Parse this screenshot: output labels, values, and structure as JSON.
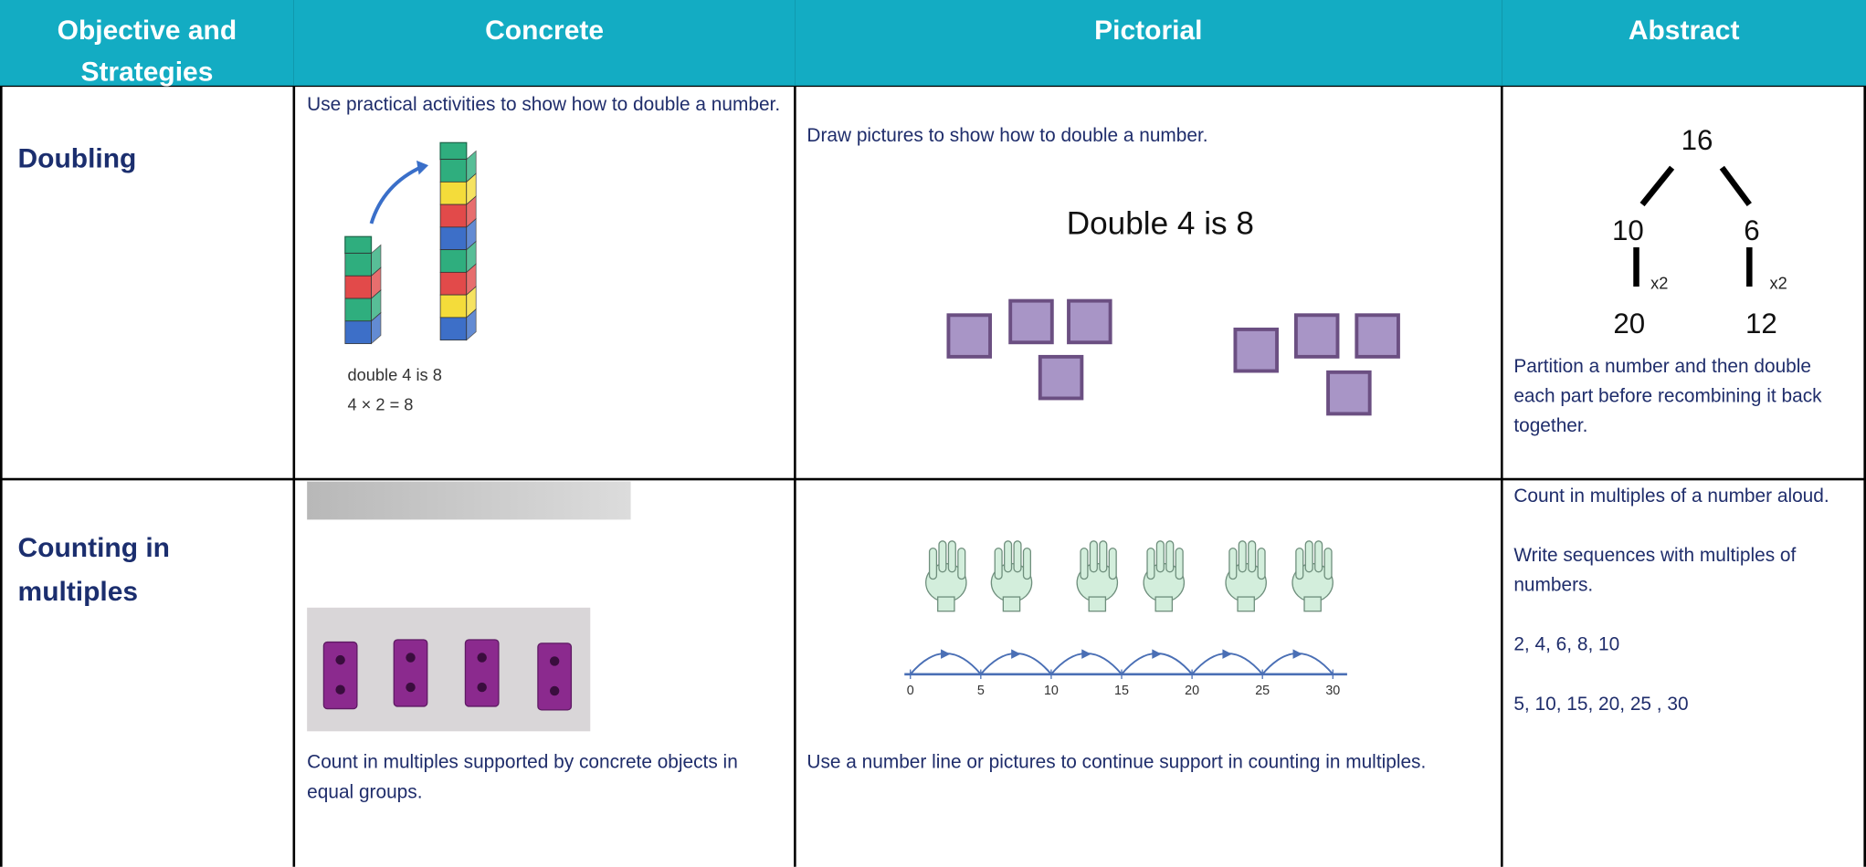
{
  "table": {
    "header": [
      "Objective and Strategies",
      "Concrete",
      "Pictorial",
      "Abstract"
    ],
    "rows": [
      {
        "objective": "Doubling",
        "concrete": {
          "text": "Use practical activities to show how to double a number.",
          "figure": [
            "double 4 is 8",
            "4 × 2 = 8"
          ]
        },
        "pictorial": {
          "text": "Draw pictures to show how to double a number.",
          "figure": "Double 4 is 8"
        },
        "abstract": {
          "tree": {
            "root": "16",
            "parts": [
              "10",
              "6"
            ],
            "operation": "x2",
            "results": [
              "20",
              "12"
            ]
          },
          "text": "Partition a number and then double each part before recombining it back together."
        }
      },
      {
        "objective": "Counting in multiples",
        "concrete": {
          "text": "Count in multiples supported by concrete objects in equal groups."
        },
        "pictorial": {
          "number_line": [
            "0",
            "5",
            "10",
            "15",
            "20",
            "25",
            "30"
          ],
          "text": "Use a number line or pictures to continue support in counting in multiples."
        },
        "abstract": {
          "lines": [
            "Count in multiples of a number aloud.",
            "Write sequences with multiples of numbers.",
            "2, 4, 6, 8, 10",
            "5, 10, 15, 20, 25 , 30"
          ]
        }
      }
    ]
  }
}
